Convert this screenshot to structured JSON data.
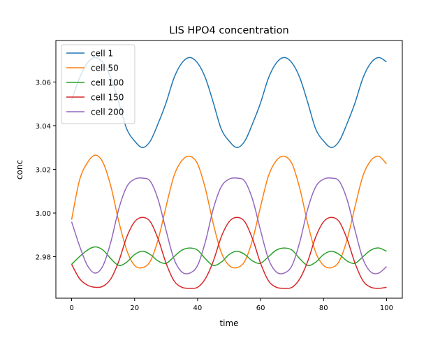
{
  "chart_data": {
    "type": "line",
    "title": "LIS HPO4 concentration",
    "xlabel": "time",
    "ylabel": "conc",
    "xlim": [
      -5,
      105
    ],
    "ylim": [
      2.961,
      3.079
    ],
    "xticks": [
      0,
      20,
      40,
      60,
      80,
      100
    ],
    "xtick_labels": [
      "0",
      "20",
      "40",
      "60",
      "80",
      "100"
    ],
    "yticks": [
      2.98,
      3.0,
      3.02,
      3.04,
      3.06
    ],
    "ytick_labels": [
      "2.98",
      "3.00",
      "3.02",
      "3.04",
      "3.06"
    ],
    "grid": false,
    "legend_position": "upper-left",
    "series": [
      {
        "name": "cell 1",
        "color": "#1f77b4",
        "x": [
          0,
          2.5,
          5,
          7.5,
          10,
          12.5,
          15,
          17.5,
          20,
          22.5,
          25,
          27.5,
          30,
          32.5,
          35,
          37.5,
          40,
          42.5,
          45,
          47.5,
          50,
          52.5,
          55,
          57.5,
          60,
          62.5,
          65,
          67.5,
          70,
          72.5,
          75,
          77.5,
          80,
          82.5,
          85,
          87.5,
          90,
          92.5,
          95,
          97.5,
          100
        ],
        "y": [
          3.0518,
          3.0618,
          3.0687,
          3.0712,
          3.0687,
          3.0618,
          3.0505,
          3.0385,
          3.033,
          3.03,
          3.033,
          3.0411,
          3.0505,
          3.0618,
          3.0687,
          3.0712,
          3.0687,
          3.0618,
          3.0505,
          3.0385,
          3.033,
          3.03,
          3.033,
          3.0411,
          3.0505,
          3.0618,
          3.0687,
          3.0712,
          3.0687,
          3.0618,
          3.0505,
          3.0385,
          3.033,
          3.03,
          3.033,
          3.0411,
          3.0505,
          3.0618,
          3.0687,
          3.0712,
          3.0692
        ]
      },
      {
        "name": "cell 50",
        "color": "#ff7f0e",
        "x": [
          0,
          2.5,
          5,
          7.5,
          10,
          12.5,
          15,
          17.5,
          20,
          22.5,
          25,
          27.5,
          30,
          32.5,
          35,
          37.5,
          40,
          42.5,
          45,
          47.5,
          50,
          52.5,
          55,
          57.5,
          60,
          62.5,
          65,
          67.5,
          70,
          72.5,
          75,
          77.5,
          80,
          82.5,
          85,
          87.5,
          90,
          92.5,
          95,
          97.5,
          100
        ],
        "y": [
          2.997,
          3.015,
          3.023,
          3.0265,
          3.023,
          3.012,
          2.996,
          2.983,
          2.976,
          2.975,
          2.978,
          2.988,
          3.003,
          3.017,
          3.024,
          3.026,
          3.0225,
          3.011,
          2.995,
          2.982,
          2.976,
          2.975,
          2.978,
          2.988,
          3.003,
          3.017,
          3.024,
          3.026,
          3.0225,
          3.011,
          2.995,
          2.982,
          2.976,
          2.975,
          2.978,
          2.988,
          3.003,
          3.017,
          3.024,
          3.026,
          3.0225
        ]
      },
      {
        "name": "cell 100",
        "color": "#2ca02c",
        "x": [
          0,
          2.5,
          5,
          7.5,
          10,
          12.5,
          15,
          17.5,
          20,
          22.5,
          25,
          27.5,
          30,
          32.5,
          35,
          37.5,
          40,
          42.5,
          45,
          47.5,
          50,
          52.5,
          55,
          57.5,
          60,
          62.5,
          65,
          67.5,
          70,
          72.5,
          75,
          77.5,
          80,
          82.5,
          85,
          87.5,
          90,
          92.5,
          95,
          97.5,
          100
        ],
        "y": [
          2.9765,
          2.98,
          2.983,
          2.9845,
          2.983,
          2.979,
          2.976,
          2.9775,
          2.981,
          2.9825,
          2.981,
          2.978,
          2.977,
          2.98,
          2.983,
          2.984,
          2.983,
          2.979,
          2.976,
          2.9775,
          2.981,
          2.9825,
          2.981,
          2.978,
          2.977,
          2.98,
          2.983,
          2.984,
          2.983,
          2.979,
          2.976,
          2.9775,
          2.981,
          2.9825,
          2.981,
          2.978,
          2.977,
          2.98,
          2.983,
          2.984,
          2.9825
        ]
      },
      {
        "name": "cell 150",
        "color": "#d62728",
        "x": [
          0,
          2.5,
          5,
          7.5,
          10,
          12.5,
          15,
          17.5,
          20,
          22.5,
          25,
          27.5,
          30,
          32.5,
          35,
          37.5,
          40,
          42.5,
          45,
          47.5,
          50,
          52.5,
          55,
          57.5,
          60,
          62.5,
          65,
          67.5,
          70,
          72.5,
          75,
          77.5,
          80,
          82.5,
          85,
          87.5,
          90,
          92.5,
          95,
          97.5,
          100
        ],
        "y": [
          2.9765,
          2.97,
          2.967,
          2.966,
          2.9665,
          2.97,
          2.978,
          2.989,
          2.996,
          2.998,
          2.996,
          2.988,
          2.977,
          2.969,
          2.966,
          2.9655,
          2.966,
          2.97,
          2.978,
          2.989,
          2.996,
          2.998,
          2.996,
          2.988,
          2.977,
          2.969,
          2.966,
          2.9655,
          2.966,
          2.97,
          2.978,
          2.989,
          2.996,
          2.998,
          2.996,
          2.988,
          2.977,
          2.969,
          2.966,
          2.9655,
          2.966
        ]
      },
      {
        "name": "cell 200",
        "color": "#9467bd",
        "x": [
          0,
          2.5,
          5,
          7.5,
          10,
          12.5,
          15,
          17.5,
          20,
          22.5,
          25,
          27.5,
          30,
          32.5,
          35,
          37.5,
          40,
          42.5,
          45,
          47.5,
          50,
          52.5,
          55,
          57.5,
          60,
          62.5,
          65,
          67.5,
          70,
          72.5,
          75,
          77.5,
          80,
          82.5,
          85,
          87.5,
          90,
          92.5,
          95,
          97.5,
          100
        ],
        "y": [
          2.996,
          2.985,
          2.976,
          2.9725,
          2.976,
          2.987,
          3.002,
          3.012,
          3.0155,
          3.016,
          3.0145,
          3.006,
          2.992,
          2.979,
          2.973,
          2.9725,
          2.976,
          2.987,
          3.002,
          3.012,
          3.0155,
          3.016,
          3.0145,
          3.006,
          2.992,
          2.979,
          2.973,
          2.9725,
          2.976,
          2.987,
          3.002,
          3.012,
          3.0155,
          3.016,
          3.0145,
          3.006,
          2.992,
          2.979,
          2.973,
          2.9725,
          2.9755
        ]
      }
    ]
  }
}
